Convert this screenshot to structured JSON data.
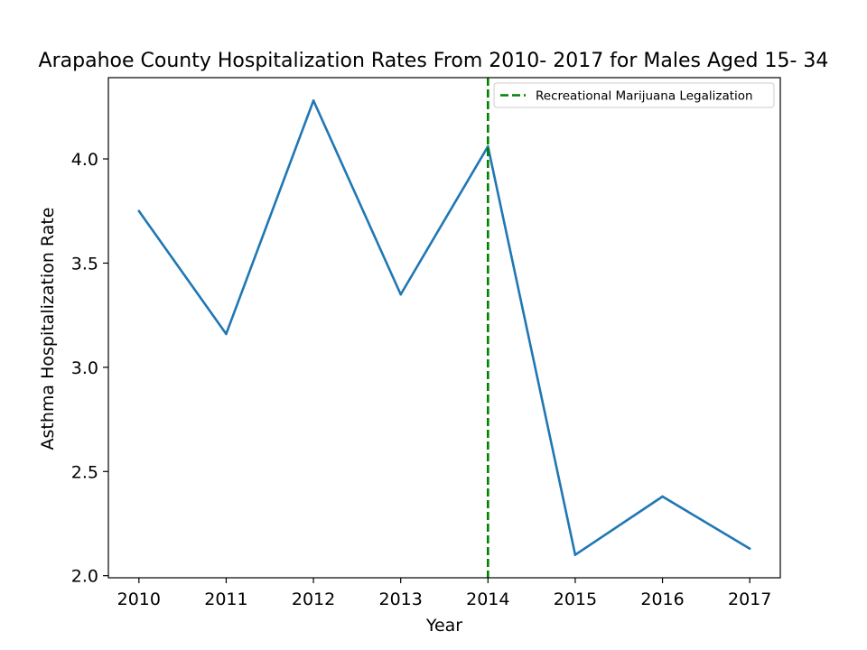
{
  "chart_data": {
    "type": "line",
    "title": "Arapahoe County Hospitalization Rates From 2010- 2017 for Males Aged 15- 34",
    "xlabel": "Year",
    "ylabel": "Asthma Hospitalization Rate",
    "x": [
      2010,
      2011,
      2012,
      2013,
      2014,
      2015,
      2016,
      2017
    ],
    "x_tick_labels": [
      "2010",
      "2011",
      "2012",
      "2013",
      "2014",
      "2015",
      "2016",
      "2017"
    ],
    "xlim": [
      2009.65,
      2017.35
    ],
    "ylim": [
      1.99,
      4.39
    ],
    "y_ticks": [
      2.0,
      2.5,
      3.0,
      3.5,
      4.0
    ],
    "y_tick_labels": [
      "2.0",
      "2.5",
      "3.0",
      "3.5",
      "4.0"
    ],
    "series": [
      {
        "values": [
          3.75,
          3.16,
          4.28,
          3.35,
          4.06,
          2.1,
          2.38,
          2.13
        ],
        "color": "#1f77b4"
      }
    ],
    "vline": {
      "x": 2014,
      "label": "Recreational Marijuana Legalization",
      "color": "#008000",
      "style": "dashed"
    },
    "legend_position": "upper right",
    "grid": false
  }
}
